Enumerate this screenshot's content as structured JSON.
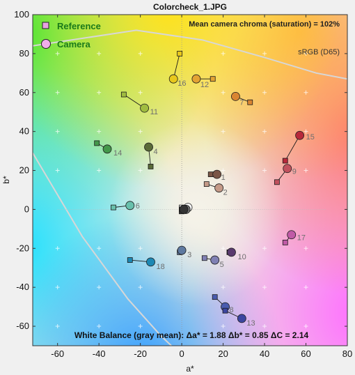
{
  "chart_data": {
    "type": "scatter",
    "title": "Colorcheck_1.JPG",
    "xlabel": "a*",
    "ylabel": "b*",
    "xlim": [
      -72,
      80
    ],
    "ylim": [
      -70,
      100
    ],
    "xticks": [
      -60,
      -40,
      -20,
      0,
      20,
      40,
      60,
      80
    ],
    "yticks": [
      -60,
      -40,
      -20,
      0,
      20,
      40,
      60,
      80,
      100
    ],
    "legend": [
      {
        "label": "Reference",
        "marker": "square"
      },
      {
        "label": "Camera",
        "marker": "circle"
      }
    ],
    "legend_position": "top-left",
    "annotations": {
      "chroma": "Mean camera chroma (saturation) = 102%",
      "gamut": "sRGB (D65)",
      "white_balance": "White Balance (gray mean):   Δa* = 1.88   Δb* = 0.85   ΔC = 2.14"
    },
    "patches": [
      {
        "id": "1",
        "ref": [
          14,
          18
        ],
        "cam": [
          17,
          18
        ],
        "color": "#7a5646"
      },
      {
        "id": "2",
        "ref": [
          12,
          13
        ],
        "cam": [
          18,
          11
        ],
        "color": "#c49a88"
      },
      {
        "id": "3",
        "ref": [
          -1,
          -22
        ],
        "cam": [
          0,
          -21
        ],
        "color": "#5f7aa0"
      },
      {
        "id": "4",
        "ref": [
          -15,
          22
        ],
        "cam": [
          -16,
          32
        ],
        "color": "#5a6a38"
      },
      {
        "id": "5",
        "ref": [
          11,
          -25
        ],
        "cam": [
          16,
          -26
        ],
        "color": "#8080b4"
      },
      {
        "id": "6",
        "ref": [
          -33,
          1
        ],
        "cam": [
          -25,
          2
        ],
        "color": "#68c0ac"
      },
      {
        "id": "7",
        "ref": [
          33,
          55
        ],
        "cam": [
          26,
          58
        ],
        "color": "#d98532"
      },
      {
        "id": "8",
        "ref": [
          16,
          -45
        ],
        "cam": [
          21,
          -50
        ],
        "color": "#4a5cae"
      },
      {
        "id": "9",
        "ref": [
          46,
          14
        ],
        "cam": [
          51,
          21
        ],
        "color": "#c1525e"
      },
      {
        "id": "10",
        "ref": [
          23,
          -22
        ],
        "cam": [
          24,
          -22
        ],
        "color": "#5a3a6e"
      },
      {
        "id": "11",
        "ref": [
          -28,
          59
        ],
        "cam": [
          -18,
          52
        ],
        "color": "#a0bc40"
      },
      {
        "id": "12",
        "ref": [
          15,
          67
        ],
        "cam": [
          7,
          67
        ],
        "color": "#e3a334"
      },
      {
        "id": "13",
        "ref": [
          21,
          -52
        ],
        "cam": [
          29,
          -56
        ],
        "color": "#3c46a0"
      },
      {
        "id": "14",
        "ref": [
          -41,
          34
        ],
        "cam": [
          -36,
          31
        ],
        "color": "#44984a"
      },
      {
        "id": "15",
        "ref": [
          50,
          25
        ],
        "cam": [
          57,
          38
        ],
        "color": "#b8283a"
      },
      {
        "id": "16",
        "ref": [
          -1,
          80
        ],
        "cam": [
          -4,
          67
        ],
        "color": "#e8c81c"
      },
      {
        "id": "17",
        "ref": [
          50,
          -17
        ],
        "cam": [
          53,
          -13
        ],
        "color": "#c05aa6"
      },
      {
        "id": "18",
        "ref": [
          -25,
          -26
        ],
        "cam": [
          -15,
          -27
        ],
        "color": "#1c88b4"
      },
      {
        "id": "19",
        "ref": [
          0,
          1
        ],
        "cam": [
          3,
          1
        ],
        "color": "#f4f4f4"
      },
      {
        "id": "20",
        "ref": [
          0,
          0
        ],
        "cam": [
          2,
          0
        ],
        "color": "#c8c8c8"
      },
      {
        "id": "21",
        "ref": [
          0,
          0
        ],
        "cam": [
          2,
          0
        ],
        "color": "#a0a0a0"
      },
      {
        "id": "22",
        "ref": [
          0,
          0
        ],
        "cam": [
          2,
          0
        ],
        "color": "#7a7a7a"
      },
      {
        "id": "23",
        "ref": [
          0,
          -1
        ],
        "cam": [
          1,
          0
        ],
        "color": "#555555"
      },
      {
        "id": "24",
        "ref": [
          0,
          -1
        ],
        "cam": [
          1,
          0
        ],
        "color": "#343434"
      }
    ],
    "gamut_boundary": [
      [
        [
          -72,
          84
        ],
        [
          -22,
          92
        ],
        [
          10,
          87
        ],
        [
          40,
          78
        ],
        [
          65,
          70
        ],
        [
          80,
          67
        ]
      ],
      [
        [
          -72,
          29
        ],
        [
          -48,
          -14
        ],
        [
          -26,
          -46
        ],
        [
          -10,
          -65
        ],
        [
          -5,
          -70
        ]
      ]
    ],
    "background_colors": {
      "yellow": "#ffe21a",
      "green": "#2ee63a",
      "cyan": "#1ee0ff",
      "blue": "#38a0ff",
      "magenta": "#ff6cff",
      "red": "#ff7070",
      "center": "#f4f2e6"
    }
  }
}
